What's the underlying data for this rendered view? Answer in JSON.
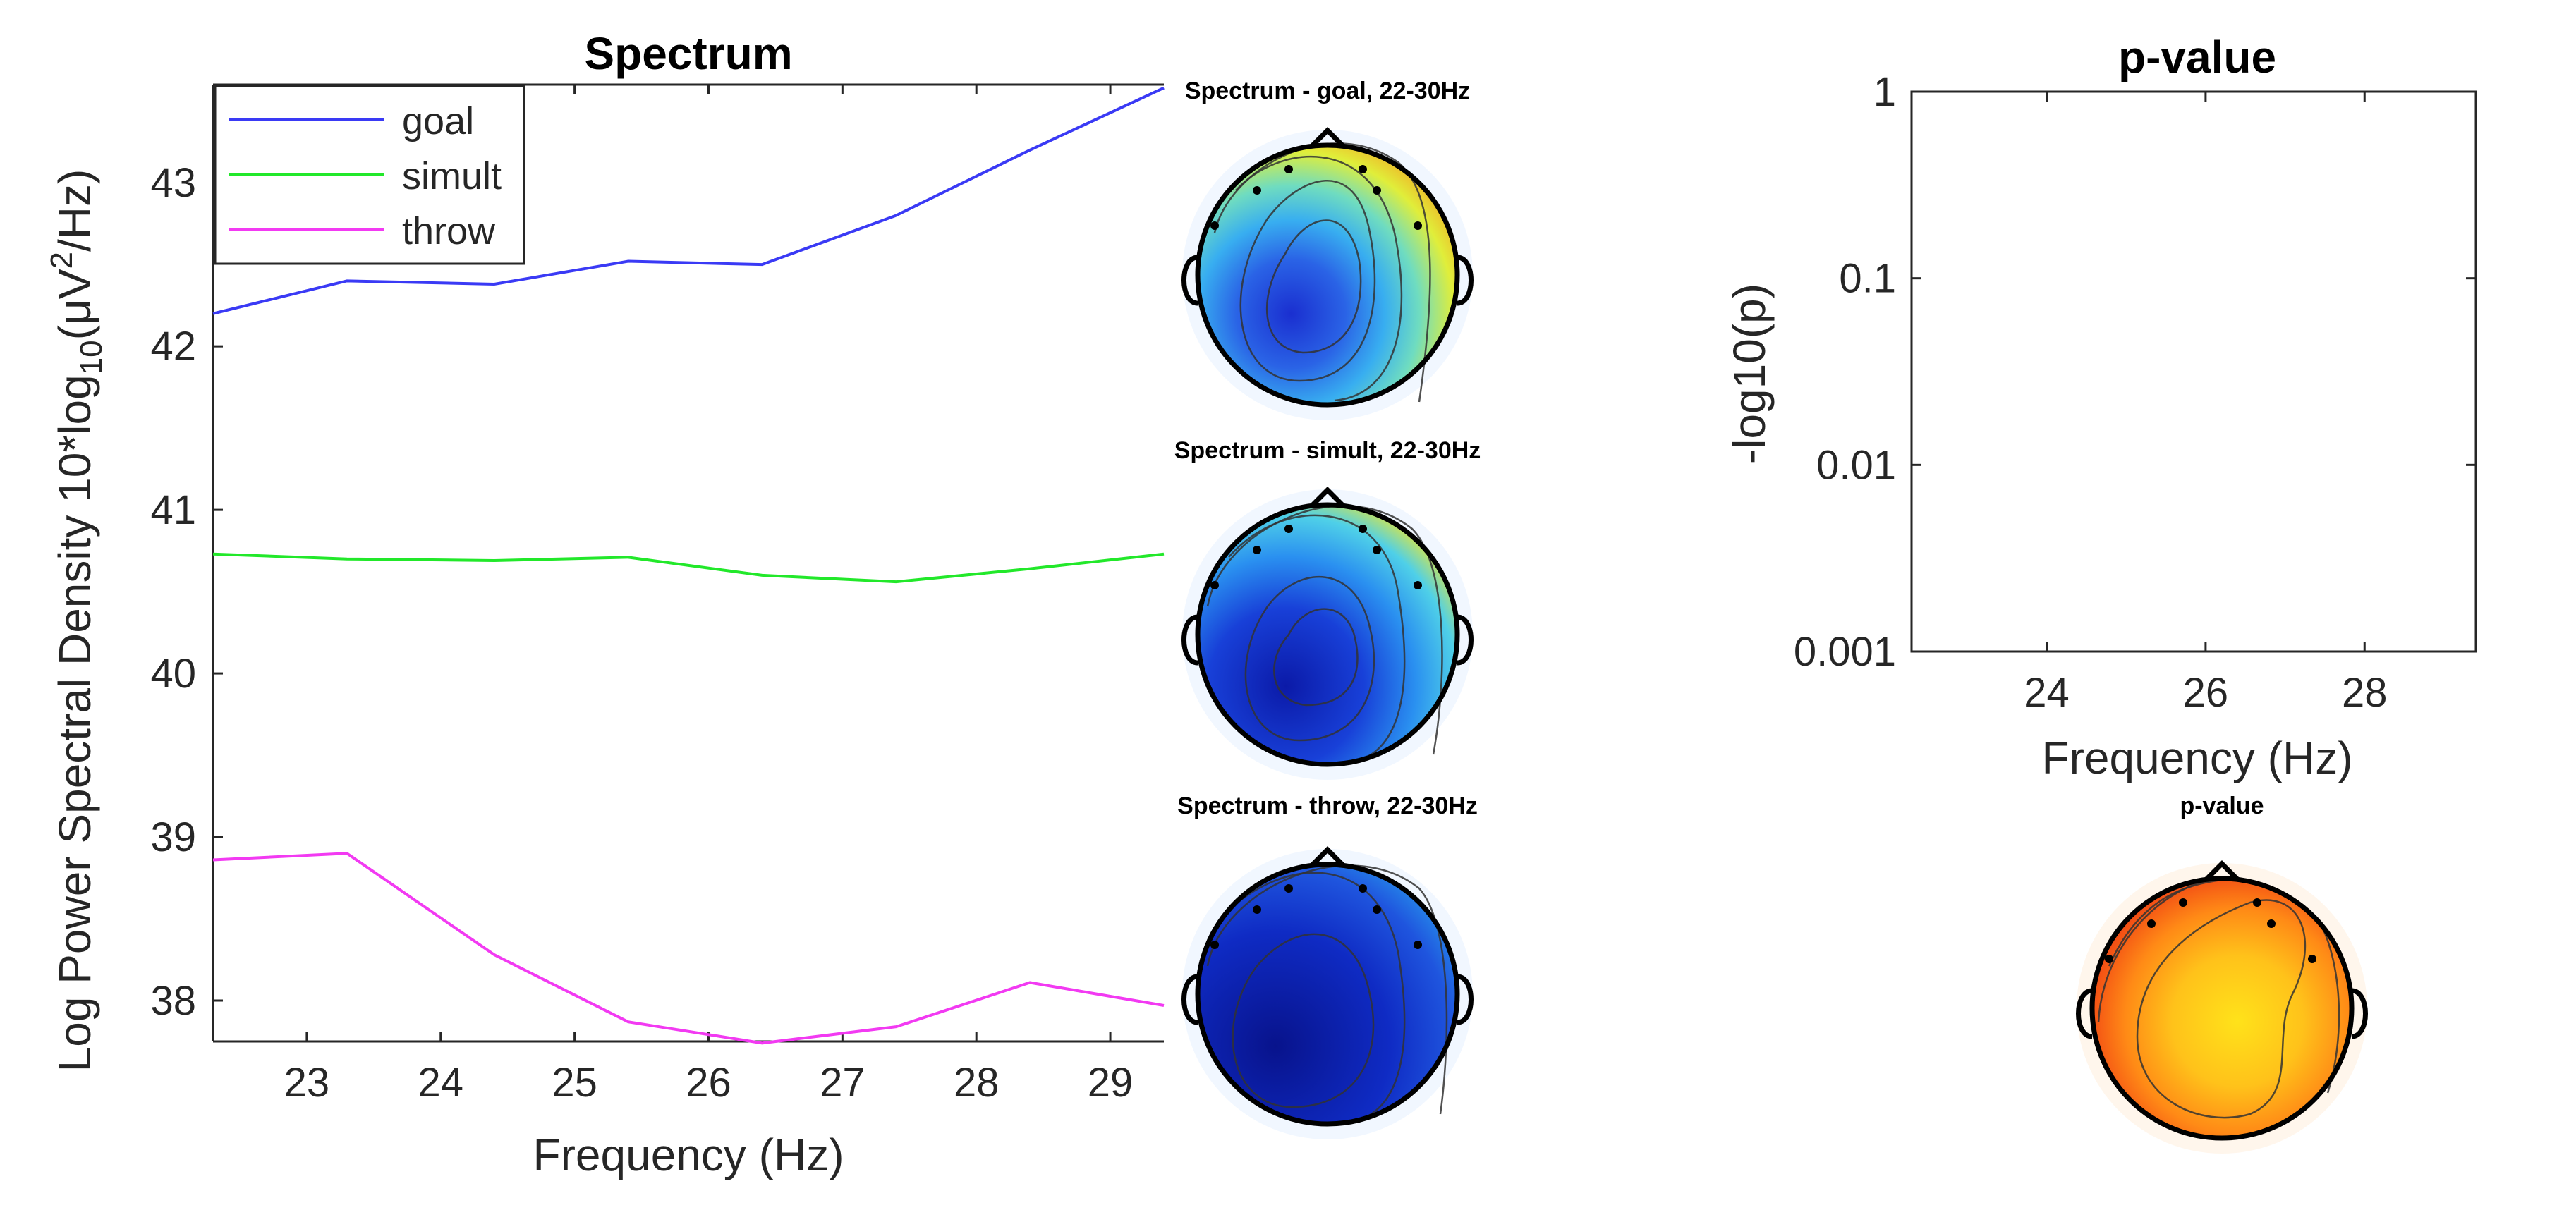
{
  "colors": {
    "goal": "#3a3af5",
    "simult": "#22e82a",
    "throw": "#f23af2",
    "axis": "#262626"
  },
  "chart_data": [
    {
      "type": "line",
      "title": "Spectrum",
      "xlabel": "Frequency (Hz)",
      "ylabel": "Log Power Spectral Density 10*log10(μV2/Hz)",
      "ylabel_parts": {
        "main": "Log Power Spectral Density 10*log",
        "sub1": "10",
        "mid": "(μV",
        "sup": "2",
        "end": "/Hz)"
      },
      "xlim": [
        22.3,
        29.4
      ],
      "ylim": [
        37.75,
        43.6
      ],
      "xticks": [
        23,
        24,
        25,
        26,
        27,
        28,
        29
      ],
      "yticks": [
        38,
        39,
        40,
        41,
        42,
        43
      ],
      "x": [
        22.3,
        23.3,
        24.4,
        25.4,
        26.4,
        27.4,
        28.4,
        29.4
      ],
      "series": [
        {
          "name": "goal",
          "values": [
            42.2,
            42.4,
            42.38,
            42.52,
            42.5,
            42.8,
            43.2,
            43.58
          ]
        },
        {
          "name": "simult",
          "values": [
            40.73,
            40.7,
            40.69,
            40.71,
            40.6,
            40.56,
            40.64,
            40.73
          ]
        },
        {
          "name": "throw",
          "values": [
            38.86,
            38.9,
            38.28,
            37.87,
            37.74,
            37.84,
            38.11,
            37.97
          ]
        }
      ],
      "legend": [
        "goal",
        "simult",
        "throw"
      ],
      "legend_location": "top-left"
    },
    {
      "type": "scatter",
      "title": "p-value",
      "xlabel": "Frequency (Hz)",
      "ylabel": "-log10(p)",
      "xlim": [
        22.3,
        29.4
      ],
      "xticks": [
        24,
        26,
        28
      ],
      "yticks": [
        "1",
        "0.1",
        "0.01",
        "0.001"
      ],
      "ylim": [
        0.001,
        1
      ],
      "yscale": "log",
      "series": []
    }
  ],
  "topoplots": {
    "goal": "Spectrum - goal, 22-30Hz",
    "simult": "Spectrum - simult, 22-30Hz",
    "throw": "Spectrum - throw, 22-30Hz",
    "pvalue": "p-value"
  }
}
